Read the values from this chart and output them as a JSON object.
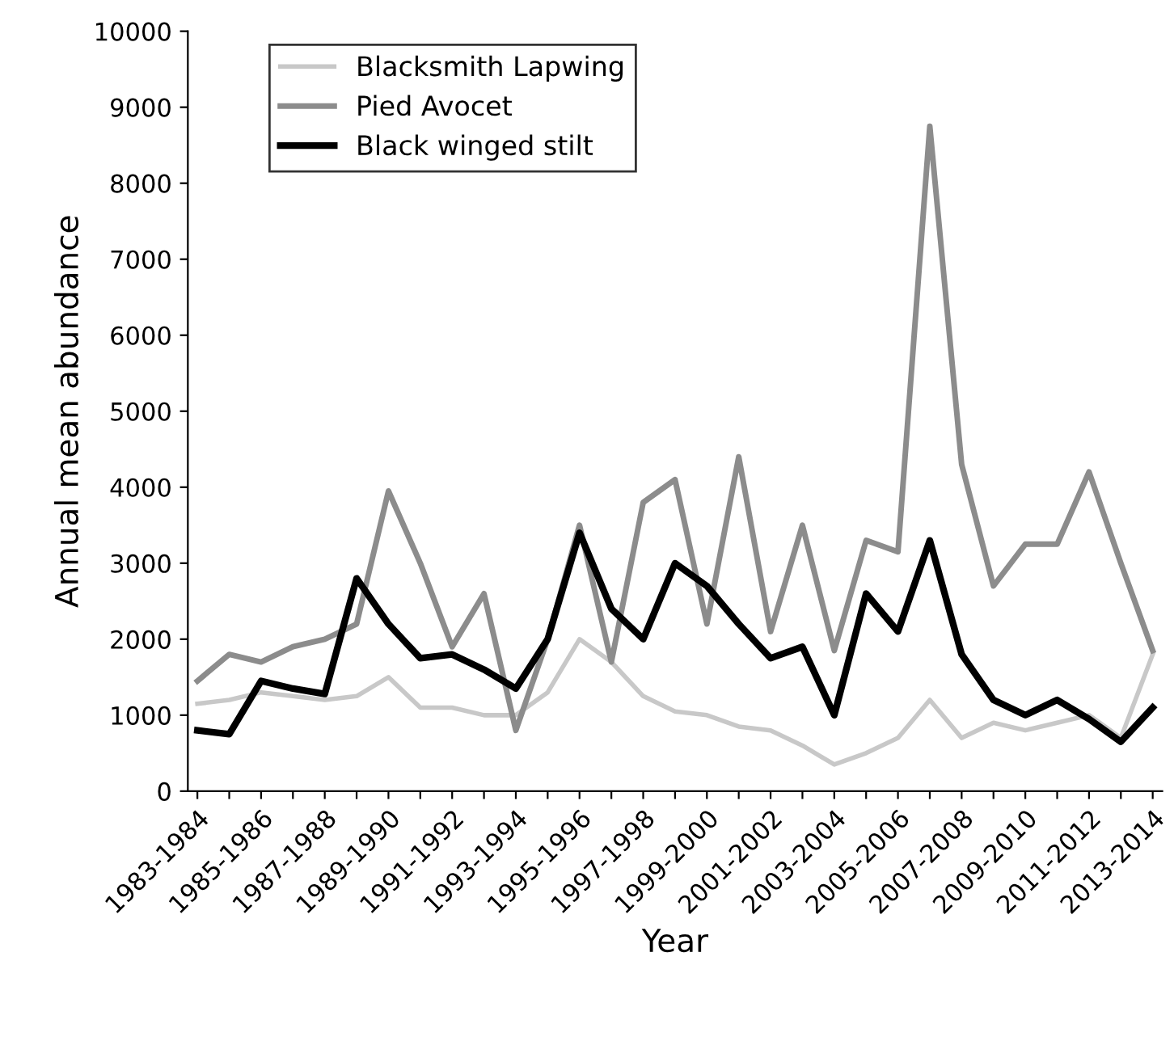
{
  "chart_data": {
    "type": "line",
    "xlabel": "Year",
    "ylabel": "Annual mean abundance",
    "categories": [
      "1983-1984",
      null,
      "1985-1986",
      null,
      "1987-1988",
      null,
      "1989-1990",
      null,
      "1991-1992",
      null,
      "1993-1994",
      null,
      "1995-1996",
      null,
      "1997-1998",
      null,
      "1999-2000",
      null,
      "2001-2002",
      null,
      "2003-2004",
      null,
      "2005-2006",
      null,
      "2007-2008",
      null,
      "2009-2010",
      null,
      "2011-2012",
      null,
      "2013-2014"
    ],
    "series": [
      {
        "name": "Blacksmith Lapwing",
        "color": "#c8c8c8",
        "values": [
          1150,
          1200,
          1300,
          1250,
          1200,
          1250,
          1500,
          1100,
          1100,
          1000,
          1000,
          1300,
          2000,
          1700,
          1250,
          1050,
          1000,
          850,
          800,
          600,
          350,
          500,
          700,
          1200,
          700,
          900,
          800,
          900,
          1000,
          700,
          1800
        ]
      },
      {
        "name": "Pied Avocet",
        "color": "#8c8c8c",
        "values": [
          1450,
          1800,
          1700,
          1900,
          2000,
          2200,
          3950,
          3000,
          1900,
          2600,
          800,
          2000,
          3500,
          1700,
          3800,
          4100,
          2200,
          4400,
          2100,
          3500,
          1850,
          3300,
          3150,
          8750,
          4300,
          2700,
          3250,
          3250,
          4200,
          3000,
          1850
        ]
      },
      {
        "name": "Black winged stilt",
        "color": "#000000",
        "values": [
          800,
          750,
          1450,
          1350,
          1280,
          2800,
          2200,
          1750,
          1800,
          1600,
          1350,
          2000,
          3400,
          2400,
          2000,
          3000,
          2700,
          2200,
          1750,
          1900,
          1000,
          2600,
          2100,
          3300,
          1800,
          1200,
          1000,
          1200,
          950,
          650,
          1100
        ]
      }
    ],
    "ylim": [
      0,
      10000
    ],
    "yticks": [
      0,
      1000,
      2000,
      3000,
      4000,
      5000,
      6000,
      7000,
      8000,
      9000,
      10000
    ],
    "grid": false,
    "legend": "top left",
    "marker": "none",
    "line_style": "solid"
  }
}
